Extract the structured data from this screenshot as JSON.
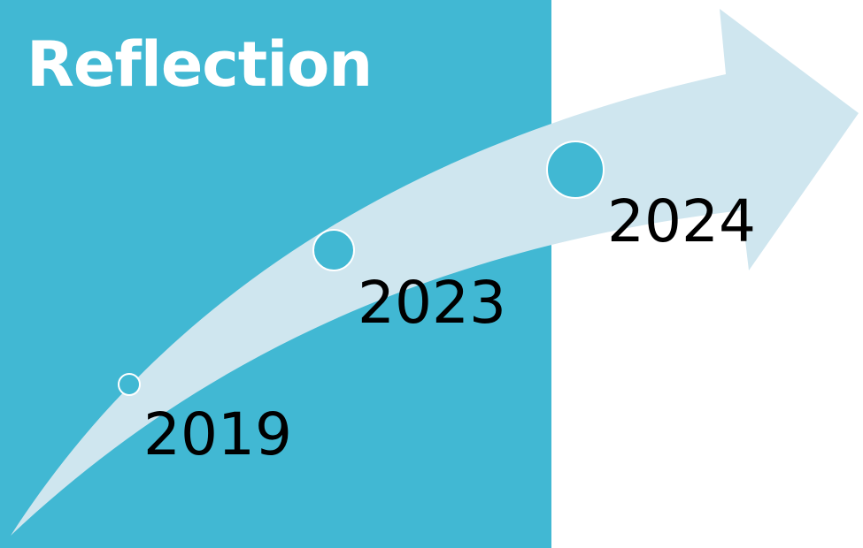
{
  "title": "Reflection",
  "colors": {
    "panel": "#41b8d3",
    "arrow": "#cfe6ef",
    "marker": "#41b8d3",
    "marker_outline": "#ffffff",
    "title": "#ffffff",
    "year_text": "#000000"
  },
  "timeline": {
    "milestones": [
      {
        "year": "2019",
        "marker_size": "small"
      },
      {
        "year": "2023",
        "marker_size": "medium"
      },
      {
        "year": "2024",
        "marker_size": "large"
      }
    ]
  }
}
